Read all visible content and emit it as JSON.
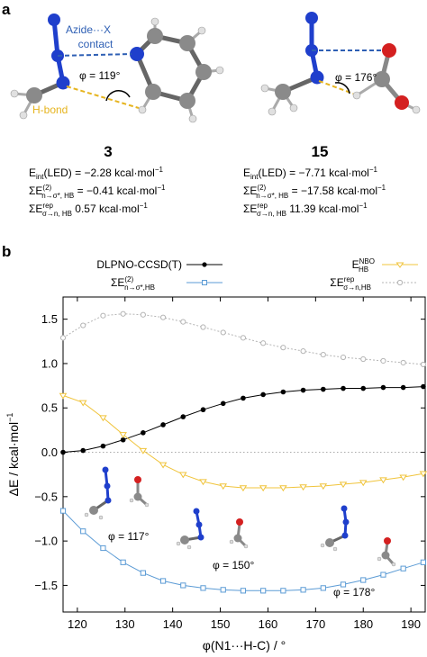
{
  "panel_a": {
    "label": "a",
    "annotations": {
      "azide_line1": "Azide···X",
      "azide_line2": "contact",
      "hbond": "H-bond"
    },
    "molecules": [
      {
        "id": "3",
        "phi": "φ = 119°",
        "e_int": "E",
        "e_int_sub": "int",
        "e_int_tail": "(LED) = −2.28 kcal·mol",
        "e_int_exp": "−1",
        "e2_sum": "ΣE",
        "e2_sup": "(2)",
        "e2_sub": "n→σ*, HB",
        "e2_tail": " = −0.41 kcal·mol",
        "e2_exp": "−1",
        "erep_sum": "ΣE",
        "erep_sup": "rep",
        "erep_sub": "σ→n, HB",
        "erep_tail": " 0.57 kcal·mol",
        "erep_exp": "−1"
      },
      {
        "id": "15",
        "phi": "φ = 176°",
        "e_int": "E",
        "e_int_sub": "int",
        "e_int_tail": "(LED) = −7.71 kcal·mol",
        "e_int_exp": "−1",
        "e2_sum": "ΣE",
        "e2_sup": "(2)",
        "e2_sub": "n→σ*, HB",
        "e2_tail": " = −17.58 kcal·mol",
        "e2_exp": "−1",
        "erep_sum": "ΣE",
        "erep_sup": "rep",
        "erep_sub": "σ→n, HB",
        "erep_tail": " 11.39 kcal·mol",
        "erep_exp": "−1"
      }
    ]
  },
  "panel_b": {
    "label": "b",
    "insets": [
      "φ = 117°",
      "φ = 150°",
      "φ = 178°"
    ],
    "legend": [
      {
        "main": "DLPNO-CCSD(T)",
        "sup": "",
        "sub": ""
      },
      {
        "main": "ΣE",
        "sup": "(2)",
        "sub": "n→σ*,HB"
      },
      {
        "main": "E",
        "sup": "NBO",
        "sub": "HB"
      },
      {
        "main": "ΣE",
        "sup": "rep",
        "sub": "σ→n,HB"
      }
    ]
  },
  "colors": {
    "dlpno": "#000000",
    "e2": "#5b9bd5",
    "enbo": "#f0c43c",
    "erep": "#b4b4b4",
    "azide_contact": "#2e5fb4",
    "hbond": "#e6b41e",
    "nitrogen": "#1f3fcc",
    "carbon": "#8a8a8a",
    "oxygen": "#d42020",
    "hydrogen": "#e8e8e8"
  },
  "chart_data": {
    "type": "line",
    "xlabel": "φ(N1···H-C) / °",
    "ylabel": "ΔE / kcal·mol",
    "ylabel_exp": "−1",
    "xlim": [
      117,
      193
    ],
    "ylim": [
      -1.8,
      1.75
    ],
    "xticks": [
      120,
      130,
      140,
      150,
      160,
      170,
      180,
      190
    ],
    "yticks": [
      -1.5,
      -1.0,
      -0.5,
      0.0,
      0.5,
      1.0,
      1.5
    ],
    "ytick_labels": [
      "−1.5",
      "−1.0",
      "−0.5",
      "0.0",
      "0.5",
      "1.0",
      "1.5"
    ],
    "zero_line": true,
    "x": [
      117,
      121.2,
      125.4,
      129.6,
      133.8,
      138,
      142.2,
      146.4,
      150.6,
      154.8,
      159,
      163.2,
      167.4,
      171.6,
      175.8,
      180,
      184.2,
      188.4,
      192.6
    ],
    "series": [
      {
        "name": "DLPNO-CCSD(T)",
        "key": "dlpno",
        "marker": "dot",
        "values": [
          0.0,
          0.02,
          0.07,
          0.14,
          0.22,
          0.31,
          0.4,
          0.48,
          0.55,
          0.61,
          0.65,
          0.68,
          0.7,
          0.71,
          0.72,
          0.72,
          0.73,
          0.73,
          0.74
        ]
      },
      {
        "name": "ΣE(2) n→σ*,HB",
        "key": "e2",
        "marker": "square",
        "values": [
          -0.66,
          -0.89,
          -1.08,
          -1.24,
          -1.36,
          -1.45,
          -1.5,
          -1.53,
          -1.55,
          -1.56,
          -1.56,
          -1.56,
          -1.55,
          -1.53,
          -1.49,
          -1.44,
          -1.38,
          -1.31,
          -1.24
        ]
      },
      {
        "name": "E NBO HB",
        "key": "enbo",
        "marker": "triangle",
        "values": [
          0.64,
          0.56,
          0.39,
          0.2,
          0.02,
          -0.14,
          -0.25,
          -0.33,
          -0.38,
          -0.4,
          -0.4,
          -0.4,
          -0.39,
          -0.38,
          -0.36,
          -0.34,
          -0.31,
          -0.28,
          -0.24
        ]
      },
      {
        "name": "ΣE rep σ→n,HB",
        "key": "erep",
        "marker": "circle-open",
        "values": [
          1.29,
          1.43,
          1.54,
          1.56,
          1.55,
          1.52,
          1.47,
          1.41,
          1.35,
          1.29,
          1.23,
          1.18,
          1.14,
          1.1,
          1.07,
          1.05,
          1.03,
          1.01,
          0.99
        ]
      }
    ]
  }
}
